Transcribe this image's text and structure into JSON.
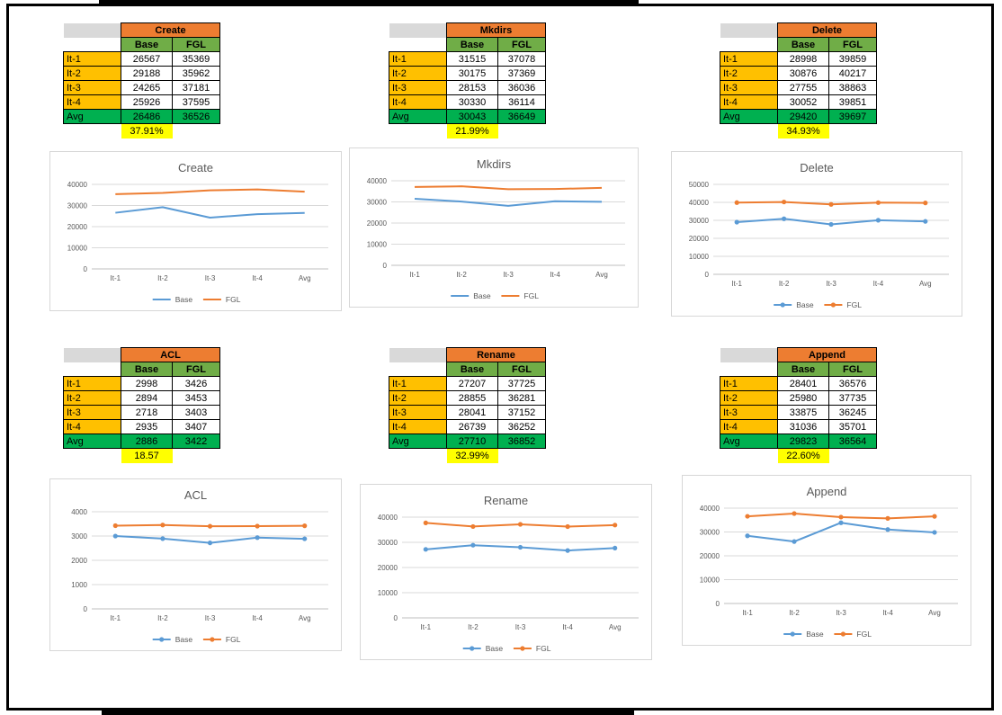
{
  "colors": {
    "header_orange": "#ED7D31",
    "subheader_green": "#70AD47",
    "row_label_orange": "#FFC000",
    "avg_green": "#00B050",
    "pct_yellow": "#FFFF00",
    "base_line": "#5B9BD5",
    "fgl_line": "#ED7D31",
    "chart_title": "#595959",
    "tick_text": "#595959",
    "grid_line": "#D9D9D9",
    "axis_line": "#BFBFBF",
    "chart_border": "#D7D7D7"
  },
  "sections": [
    {
      "name": "create",
      "table": {
        "title": "Create",
        "col_headers": [
          "Base",
          "FGL"
        ],
        "rows": [
          {
            "label": "It-1",
            "base": "26567",
            "fgl": "35369"
          },
          {
            "label": "It-2",
            "base": "29188",
            "fgl": "35962"
          },
          {
            "label": "It-3",
            "base": "24265",
            "fgl": "37181"
          },
          {
            "label": "It-4",
            "base": "25926",
            "fgl": "37595"
          }
        ],
        "avg": {
          "label": "Avg",
          "base": "26486",
          "fgl": "36526"
        },
        "pct": "37.91%"
      }
    },
    {
      "name": "mkdirs",
      "table": {
        "title": "Mkdirs",
        "col_headers": [
          "Base",
          "FGL"
        ],
        "rows": [
          {
            "label": "It-1",
            "base": "31515",
            "fgl": "37078"
          },
          {
            "label": "It-2",
            "base": "30175",
            "fgl": "37369"
          },
          {
            "label": "It-3",
            "base": "28153",
            "fgl": "36036"
          },
          {
            "label": "It-4",
            "base": "30330",
            "fgl": "36114"
          }
        ],
        "avg": {
          "label": "Avg",
          "base": "30043",
          "fgl": "36649"
        },
        "pct": "21.99%"
      }
    },
    {
      "name": "delete",
      "table": {
        "title": "Delete",
        "col_headers": [
          "Base",
          "FGL"
        ],
        "rows": [
          {
            "label": "It-1",
            "base": "28998",
            "fgl": "39859"
          },
          {
            "label": "It-2",
            "base": "30876",
            "fgl": "40217"
          },
          {
            "label": "It-3",
            "base": "27755",
            "fgl": "38863"
          },
          {
            "label": "It-4",
            "base": "30052",
            "fgl": "39851"
          }
        ],
        "avg": {
          "label": "Avg",
          "base": "29420",
          "fgl": "39697"
        },
        "pct": "34.93%"
      }
    },
    {
      "name": "acl",
      "table": {
        "title": "ACL",
        "col_headers": [
          "Base",
          "FGL"
        ],
        "rows": [
          {
            "label": "It-1",
            "base": "2998",
            "fgl": "3426"
          },
          {
            "label": "It-2",
            "base": "2894",
            "fgl": "3453"
          },
          {
            "label": "It-3",
            "base": "2718",
            "fgl": "3403"
          },
          {
            "label": "It-4",
            "base": "2935",
            "fgl": "3407"
          }
        ],
        "avg": {
          "label": "Avg",
          "base": "2886",
          "fgl": "3422"
        },
        "pct": "18.57"
      }
    },
    {
      "name": "rename",
      "table": {
        "title": "Rename",
        "col_headers": [
          "Base",
          "FGL"
        ],
        "rows": [
          {
            "label": "It-1",
            "base": "27207",
            "fgl": "37725"
          },
          {
            "label": "It-2",
            "base": "28855",
            "fgl": "36281"
          },
          {
            "label": "It-3",
            "base": "28041",
            "fgl": "37152"
          },
          {
            "label": "It-4",
            "base": "26739",
            "fgl": "36252"
          }
        ],
        "avg": {
          "label": "Avg",
          "base": "27710",
          "fgl": "36852"
        },
        "pct": "32.99%"
      }
    },
    {
      "name": "append",
      "table": {
        "title": "Append",
        "col_headers": [
          "Base",
          "FGL"
        ],
        "rows": [
          {
            "label": "It-1",
            "base": "28401",
            "fgl": "36576"
          },
          {
            "label": "It-2",
            "base": "25980",
            "fgl": "37735"
          },
          {
            "label": "It-3",
            "base": "33875",
            "fgl": "36245"
          },
          {
            "label": "It-4",
            "base": "31036",
            "fgl": "35701"
          }
        ],
        "avg": {
          "label": "Avg",
          "base": "29823",
          "fgl": "36564"
        },
        "pct": "22.60%"
      }
    }
  ],
  "chart_data": [
    {
      "type": "line",
      "title": "Create",
      "categories": [
        "It-1",
        "It-2",
        "It-3",
        "It-4",
        "Avg"
      ],
      "series": [
        {
          "name": "Base",
          "color": "#5B9BD5",
          "values": [
            26567,
            29188,
            24265,
            25926,
            26486
          ]
        },
        {
          "name": "FGL",
          "color": "#ED7D31",
          "values": [
            35369,
            35962,
            37181,
            37595,
            36526
          ]
        }
      ],
      "ylim": [
        0,
        40000
      ],
      "yticks": [
        0,
        10000,
        20000,
        30000,
        40000
      ],
      "markers": false,
      "grid": true,
      "legend_position": "bottom"
    },
    {
      "type": "line",
      "title": "Mkdirs",
      "categories": [
        "It-1",
        "It-2",
        "It-3",
        "It-4",
        "Avg"
      ],
      "series": [
        {
          "name": "Base",
          "color": "#5B9BD5",
          "values": [
            31515,
            30175,
            28153,
            30330,
            30043
          ]
        },
        {
          "name": "FGL",
          "color": "#ED7D31",
          "values": [
            37078,
            37369,
            36036,
            36114,
            36649
          ]
        }
      ],
      "ylim": [
        0,
        40000
      ],
      "yticks": [
        0,
        10000,
        20000,
        30000,
        40000
      ],
      "markers": false,
      "grid": true,
      "legend_position": "bottom"
    },
    {
      "type": "line",
      "title": "Delete",
      "categories": [
        "It-1",
        "It-2",
        "It-3",
        "It-4",
        "Avg"
      ],
      "series": [
        {
          "name": "Base",
          "color": "#5B9BD5",
          "values": [
            28998,
            30876,
            27755,
            30052,
            29420
          ]
        },
        {
          "name": "FGL",
          "color": "#ED7D31",
          "values": [
            39859,
            40217,
            38863,
            39851,
            39697
          ]
        }
      ],
      "ylim": [
        0,
        50000
      ],
      "yticks": [
        0,
        10000,
        20000,
        30000,
        40000,
        50000
      ],
      "markers": true,
      "grid": true,
      "legend_position": "bottom"
    },
    {
      "type": "line",
      "title": "ACL",
      "categories": [
        "It-1",
        "It-2",
        "It-3",
        "It-4",
        "Avg"
      ],
      "series": [
        {
          "name": "Base",
          "color": "#5B9BD5",
          "values": [
            2998,
            2894,
            2718,
            2935,
            2886
          ]
        },
        {
          "name": "FGL",
          "color": "#ED7D31",
          "values": [
            3426,
            3453,
            3403,
            3407,
            3422
          ]
        }
      ],
      "ylim": [
        0,
        4000
      ],
      "yticks": [
        0,
        1000,
        2000,
        3000,
        4000
      ],
      "markers": true,
      "grid": true,
      "legend_position": "bottom"
    },
    {
      "type": "line",
      "title": "Rename",
      "categories": [
        "It-1",
        "It-2",
        "It-3",
        "It-4",
        "Avg"
      ],
      "series": [
        {
          "name": "Base",
          "color": "#5B9BD5",
          "values": [
            27207,
            28855,
            28041,
            26739,
            27710
          ]
        },
        {
          "name": "FGL",
          "color": "#ED7D31",
          "values": [
            37725,
            36281,
            37152,
            36252,
            36852
          ]
        }
      ],
      "ylim": [
        0,
        40000
      ],
      "yticks": [
        0,
        10000,
        20000,
        30000,
        40000
      ],
      "markers": true,
      "grid": true,
      "legend_position": "bottom"
    },
    {
      "type": "line",
      "title": "Append",
      "categories": [
        "It-1",
        "It-2",
        "It-3",
        "It-4",
        "Avg"
      ],
      "series": [
        {
          "name": "Base",
          "color": "#5B9BD5",
          "values": [
            28401,
            25980,
            33875,
            31036,
            29823
          ]
        },
        {
          "name": "FGL",
          "color": "#ED7D31",
          "values": [
            36576,
            37735,
            36245,
            35701,
            36564
          ]
        }
      ],
      "ylim": [
        0,
        40000
      ],
      "yticks": [
        0,
        10000,
        20000,
        30000,
        40000
      ],
      "markers": true,
      "grid": true,
      "legend_position": "bottom"
    }
  ]
}
